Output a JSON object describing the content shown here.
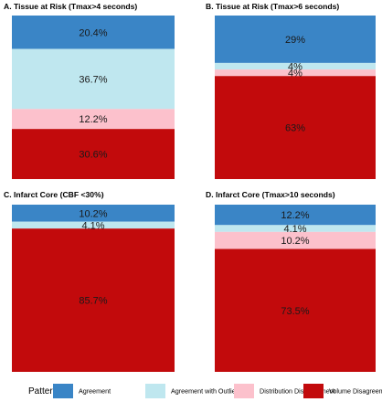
{
  "legend": {
    "title": "Patterns:",
    "entries": [
      {
        "label": "Agreement",
        "color": "#3a85c6"
      },
      {
        "label": "Agreement with Outliers",
        "color": "#bfe7ef"
      },
      {
        "label": "Distribution Disagreement",
        "color": "#fcc1cc"
      },
      {
        "label": "Volume Disagreement",
        "color": "#c20a0c"
      }
    ]
  },
  "chart_data": [
    {
      "type": "bar",
      "stacked": true,
      "title": "A. Tissue at Risk (Tmax>4 seconds)",
      "series": [
        {
          "name": "Agreement",
          "values": [
            20.4
          ],
          "label": "20.4%"
        },
        {
          "name": "Agreement with Outliers",
          "values": [
            36.7
          ],
          "label": "36.7%"
        },
        {
          "name": "Distribution Disagreement",
          "values": [
            12.2
          ],
          "label": "12.2%"
        },
        {
          "name": "Volume Disagreement",
          "values": [
            30.6
          ],
          "label": "30.6%"
        }
      ]
    },
    {
      "type": "bar",
      "stacked": true,
      "title": "B. Tissue at Risk (Tmax>6 seconds)",
      "series": [
        {
          "name": "Agreement",
          "values": [
            29
          ],
          "label": "29%"
        },
        {
          "name": "Agreement with Outliers",
          "values": [
            4
          ],
          "label": "4%"
        },
        {
          "name": "Distribution Disagreement",
          "values": [
            4
          ],
          "label": "4%"
        },
        {
          "name": "Volume Disagreement",
          "values": [
            63
          ],
          "label": "63%"
        }
      ]
    },
    {
      "type": "bar",
      "stacked": true,
      "title": "C. Infarct Core (CBF <30%)",
      "series": [
        {
          "name": "Agreement",
          "values": [
            10.2
          ],
          "label": "10.2%"
        },
        {
          "name": "Agreement with Outliers",
          "values": [
            4.1
          ],
          "label": "4.1%"
        },
        {
          "name": "Distribution Disagreement",
          "values": [
            0
          ],
          "label": ""
        },
        {
          "name": "Volume Disagreement",
          "values": [
            85.7
          ],
          "label": "85.7%"
        }
      ]
    },
    {
      "type": "bar",
      "stacked": true,
      "title": "D. Infarct Core (Tmax>10 seconds)",
      "series": [
        {
          "name": "Agreement",
          "values": [
            12.2
          ],
          "label": "12.2%"
        },
        {
          "name": "Agreement with Outliers",
          "values": [
            4.1
          ],
          "label": "4.1%"
        },
        {
          "name": "Distribution Disagreement",
          "values": [
            10.2
          ],
          "label": "10.2%"
        },
        {
          "name": "Volume Disagreement",
          "values": [
            73.5
          ],
          "label": "73.5%"
        }
      ]
    }
  ]
}
